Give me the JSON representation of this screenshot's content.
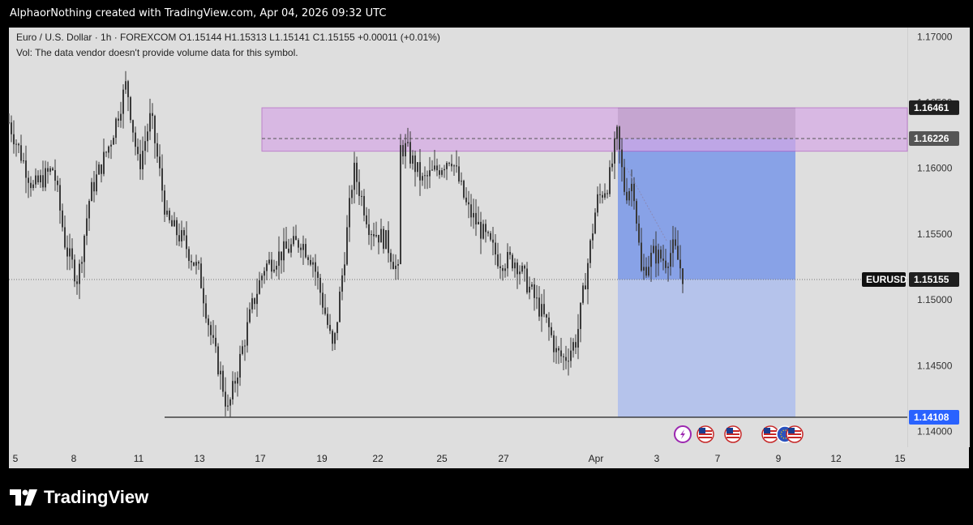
{
  "header": {
    "credit": "AlphaorNothing created with TradingView.com, Apr 04, 2026 09:32 UTC"
  },
  "legend": {
    "symbol_line": "Euro / U.S. Dollar · 1h · FOREXCOM",
    "open": "O1.15144",
    "high": "H1.15313",
    "low": "L1.15141",
    "close": "C1.15155",
    "change": "+0.00011 (+0.01%)",
    "vol_note": "Vol: The data vendor doesn't provide volume data for this symbol."
  },
  "branding": {
    "name": "TradingView"
  },
  "colors": {
    "background": "#dedede",
    "candle": "#3a3a3a",
    "zone_fill": "#d6a8e6",
    "zone_border": "#b05cc4",
    "stop_zone": "#8a8a8a",
    "target_zone": "#7e9be8",
    "target_zone_light": "#b0c0ec",
    "price_tag_dark": "#1f1f1f",
    "price_tag_blue": "#2962ff"
  },
  "chart_data": {
    "type": "candlestick",
    "symbol": "EURUSD",
    "interval": "1h",
    "ylim": [
      1.1388,
      1.1707
    ],
    "y_ticks": [
      1.14,
      1.145,
      1.15,
      1.155,
      1.16,
      1.165,
      1.17
    ],
    "y_tick_labels": [
      "1.14000",
      "1.14500",
      "1.15000",
      "1.15500",
      "1.16000",
      "1.16500",
      "1.17000"
    ],
    "x_ticks": [
      "5",
      "8",
      "11",
      "13",
      "17",
      "19",
      "22",
      "25",
      "27",
      "Apr",
      "3",
      "7",
      "9",
      "12",
      "15"
    ],
    "bars_total": 1108,
    "close_path": [
      [
        0,
        1.1635
      ],
      [
        30,
        1.1585
      ],
      [
        55,
        1.16
      ],
      [
        70,
        1.154
      ],
      [
        85,
        1.1515
      ],
      [
        100,
        1.158
      ],
      [
        125,
        1.162
      ],
      [
        145,
        1.1665
      ],
      [
        160,
        1.16
      ],
      [
        175,
        1.164
      ],
      [
        195,
        1.156
      ],
      [
        215,
        1.1545
      ],
      [
        235,
        1.152
      ],
      [
        250,
        1.147
      ],
      [
        262,
        1.144
      ],
      [
        270,
        1.1415
      ],
      [
        285,
        1.1455
      ],
      [
        300,
        1.1495
      ],
      [
        315,
        1.1525
      ],
      [
        335,
        1.1535
      ],
      [
        360,
        1.1545
      ],
      [
        375,
        1.153
      ],
      [
        390,
        1.149
      ],
      [
        400,
        1.146
      ],
      [
        415,
        1.154
      ],
      [
        425,
        1.16
      ],
      [
        445,
        1.1555
      ],
      [
        465,
        1.1545
      ],
      [
        480,
        1.152
      ],
      [
        478,
        1.149
      ],
      [
        483,
        1.1615
      ],
      [
        490,
        1.1615
      ],
      [
        510,
        1.159
      ],
      [
        530,
        1.16
      ],
      [
        545,
        1.161
      ],
      [
        565,
        1.157
      ],
      [
        585,
        1.155
      ],
      [
        605,
        1.153
      ],
      [
        625,
        1.153
      ],
      [
        645,
        1.1505
      ],
      [
        665,
        1.148
      ],
      [
        675,
        1.146
      ],
      [
        685,
        1.1455
      ],
      [
        700,
        1.147
      ],
      [
        712,
        1.152
      ],
      [
        725,
        1.1575
      ],
      [
        740,
        1.159
      ],
      [
        750,
        1.1625
      ],
      [
        760,
        1.158
      ],
      [
        770,
        1.159
      ],
      [
        780,
        1.152
      ],
      [
        795,
        1.1535
      ],
      [
        810,
        1.153
      ],
      [
        820,
        1.154
      ],
      [
        833,
        1.1515
      ]
    ],
    "lines": [
      {
        "label": "EURUSD",
        "value": 1.15155,
        "value_label": "1.15155",
        "style": "dotted"
      },
      {
        "value": 1.14108,
        "value_label": "1.14108",
        "style": "solid"
      },
      {
        "value": 1.16226,
        "value_label": "1.16226",
        "style": "dashed"
      }
    ],
    "supply_zone": {
      "from": 1.1613,
      "to": 1.1646
    },
    "short_position": {
      "entry": 1.16226,
      "stop": 1.16461,
      "stop_label": "1.16461",
      "target": 1.14108,
      "target_label": "1.14108"
    },
    "event_icons": [
      "bolt",
      "us-flag",
      "us-flag",
      "us-flag",
      "eu-flag",
      "us-flag"
    ]
  }
}
